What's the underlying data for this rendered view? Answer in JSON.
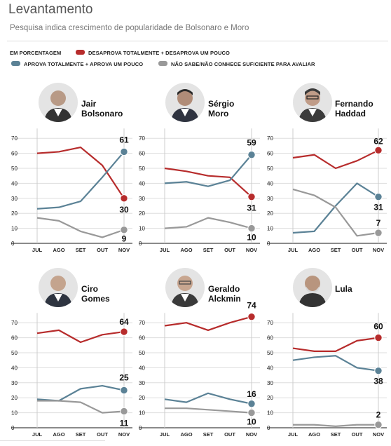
{
  "header": {
    "title": "Levantamento",
    "subtitle": "Pesquisa indica crescimento de popularidade de Bolsonaro e Moro"
  },
  "legend": {
    "unit": "EM PORCENTAGEM",
    "items": [
      {
        "label": "DESAPROVA TOTALMENTE + DESAPROVA UM POUCO",
        "color": "#b72c2c"
      },
      {
        "label": "APROVA TOTALMENTE + APROVA UM POUCO",
        "color": "#5b8296"
      },
      {
        "label": "NÃO SABE/NÃO CONHECE SUFICIENTE PARA AVALIAR",
        "color": "#999999"
      }
    ]
  },
  "candidates": [
    {
      "line1": "Jair",
      "line2": "Bolsonaro"
    },
    {
      "line1": "Sérgio",
      "line2": "Moro"
    },
    {
      "line1": "Fernando",
      "line2": "Haddad"
    },
    {
      "line1": "Ciro",
      "line2": "Gomes"
    },
    {
      "line1": "Geraldo",
      "line2": "Alckmin"
    },
    {
      "line1": "Lula",
      "line2": ""
    }
  ],
  "icons": {
    "portrait": "person-portrait-icon"
  },
  "chart_data": [
    {
      "type": "line",
      "panel": "Jair Bolsonaro",
      "x": [
        "JUL",
        "AGO",
        "SET",
        "OUT",
        "NOV"
      ],
      "x_points": [
        0,
        1,
        2,
        3,
        4
      ],
      "series": [
        {
          "color": "#b72c2c",
          "values": [
            60,
            61,
            64,
            52,
            30
          ],
          "label": "30"
        },
        {
          "color": "#5b8296",
          "values": [
            23,
            24,
            28,
            44,
            61
          ],
          "label": "61"
        },
        {
          "color": "#999999",
          "values": [
            17,
            15,
            8,
            4,
            9
          ],
          "label": "9"
        }
      ],
      "ylim": [
        0,
        70
      ],
      "yticks": [
        0,
        10,
        20,
        30,
        40,
        50,
        60,
        70
      ]
    },
    {
      "type": "line",
      "panel": "Sérgio Moro",
      "x": [
        "JUL",
        "AGO",
        "SET",
        "OUT",
        "NOV"
      ],
      "x_points": [
        0,
        1,
        2,
        3,
        4
      ],
      "series": [
        {
          "color": "#b72c2c",
          "values": [
            50,
            48,
            45,
            44,
            31
          ],
          "label": "31"
        },
        {
          "color": "#5b8296",
          "values": [
            40,
            41,
            38,
            42,
            59
          ],
          "label": "59"
        },
        {
          "color": "#999999",
          "values": [
            10,
            11,
            17,
            14,
            10
          ],
          "label": "10"
        }
      ],
      "ylim": [
        0,
        70
      ],
      "yticks": [
        0,
        10,
        20,
        30,
        40,
        50,
        60,
        70
      ]
    },
    {
      "type": "line",
      "panel": "Fernando Haddad",
      "x": [
        "JUL",
        "AGO",
        "SET",
        "OUT",
        "NOV"
      ],
      "x_points": [
        0,
        1,
        2,
        3,
        4
      ],
      "series": [
        {
          "color": "#b72c2c",
          "values": [
            57,
            59,
            50,
            55,
            62
          ],
          "label": "62"
        },
        {
          "color": "#5b8296",
          "values": [
            7,
            8,
            25,
            40,
            31
          ],
          "label": "31"
        },
        {
          "color": "#999999",
          "values": [
            36,
            32,
            24,
            5,
            7
          ],
          "label": "7"
        }
      ],
      "ylim": [
        0,
        70
      ],
      "yticks": [
        0,
        10,
        20,
        30,
        40,
        50,
        60,
        70
      ]
    },
    {
      "type": "line",
      "panel": "Ciro Gomes",
      "x": [
        "JUL",
        "AGO",
        "SET",
        "OUT",
        "NOV"
      ],
      "x_points": [
        0,
        1,
        2,
        3,
        4
      ],
      "series": [
        {
          "color": "#b72c2c",
          "values": [
            63,
            65,
            57,
            62,
            64
          ],
          "label": "64"
        },
        {
          "color": "#5b8296",
          "values": [
            19,
            18,
            26,
            28,
            25
          ],
          "label": "25"
        },
        {
          "color": "#999999",
          "values": [
            18,
            18,
            17,
            10,
            11
          ],
          "label": "11"
        }
      ],
      "ylim": [
        0,
        70
      ],
      "yticks": [
        0,
        10,
        20,
        30,
        40,
        50,
        60,
        70
      ]
    },
    {
      "type": "line",
      "panel": "Geraldo Alckmin",
      "x": [
        "JUL",
        "AGO",
        "SET",
        "OUT",
        "NOV"
      ],
      "x_points": [
        0,
        1,
        2,
        3,
        4
      ],
      "series": [
        {
          "color": "#b72c2c",
          "values": [
            68,
            70,
            65,
            70,
            74
          ],
          "label": "74"
        },
        {
          "color": "#5b8296",
          "values": [
            19,
            17,
            23,
            19,
            16
          ],
          "label": "16"
        },
        {
          "color": "#999999",
          "values": [
            13,
            13,
            12,
            11,
            10
          ],
          "label": "10"
        }
      ],
      "ylim": [
        0,
        70
      ],
      "yticks": [
        0,
        10,
        20,
        30,
        40,
        50,
        60,
        70
      ]
    },
    {
      "type": "line",
      "panel": "Lula",
      "x": [
        "JUL",
        "AGO",
        "SET",
        "OUT",
        "NOV"
      ],
      "x_points": [
        0,
        1,
        2,
        3,
        4
      ],
      "series": [
        {
          "color": "#b72c2c",
          "values": [
            53,
            51,
            51,
            58,
            60
          ],
          "label": "60"
        },
        {
          "color": "#5b8296",
          "values": [
            45,
            47,
            48,
            40,
            38
          ],
          "label": "38"
        },
        {
          "color": "#999999",
          "values": [
            2,
            2,
            1,
            2,
            2
          ],
          "label": "2"
        }
      ],
      "ylim": [
        0,
        70
      ],
      "yticks": [
        0,
        10,
        20,
        30,
        40,
        50,
        60,
        70
      ]
    }
  ]
}
